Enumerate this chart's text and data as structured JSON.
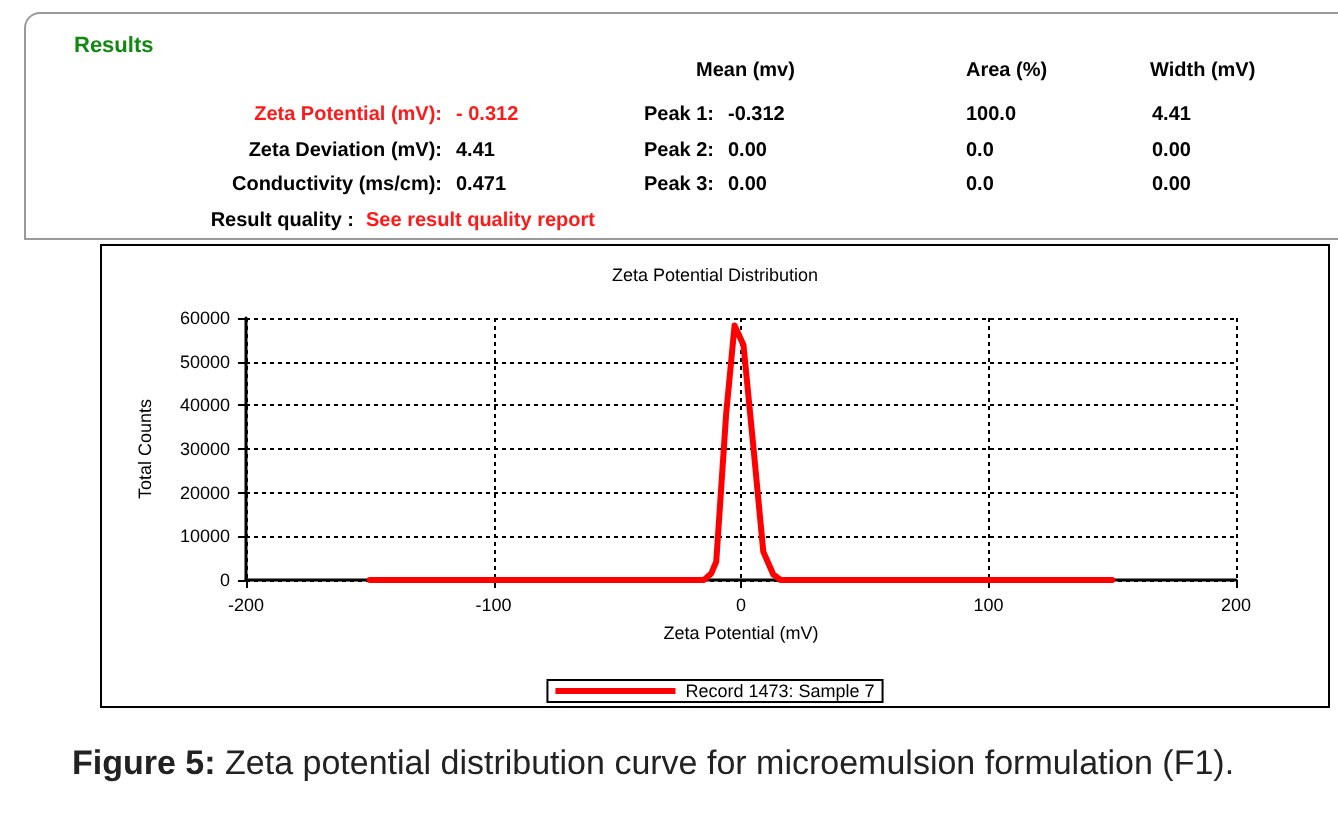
{
  "chart_data": [
    {
      "type": "other",
      "title": "Results",
      "annotations": [
        "Zeta Potential (mV):",
        "- 0.312",
        "Zeta Deviation (mV):",
        "4.41",
        "Conductivity (ms/cm):",
        "0.471",
        "Result quality :",
        "See result quality report",
        "Mean (mv)",
        "Area (%)",
        "Width (mV)",
        "Peak 1:",
        "-0.312",
        "100.0",
        "4.41",
        "Peak 2:",
        "0.00",
        "0.0",
        "0.00",
        "Peak 3:",
        "0.00",
        "0.0",
        "0.00"
      ]
    },
    {
      "type": "line",
      "title": "Zeta Potential Distribution",
      "xlabel": "Zeta Potential (mV)",
      "ylabel": "Total Counts",
      "xlim": [
        -200,
        200
      ],
      "xticks": [
        -200,
        -100,
        0,
        100,
        200
      ],
      "ylim": [
        0,
        60000
      ],
      "yticks": [
        0,
        10000,
        20000,
        30000,
        40000,
        50000,
        60000
      ],
      "grid": true,
      "legend": "bottom",
      "marker": "none",
      "line_style": "solid",
      "series": [
        {
          "name": "Record 1473: Sample 7",
          "color": "#ff0000",
          "x": [
            -150,
            -15,
            -12,
            -10,
            -6,
            -2.6,
            1,
            5,
            9,
            13,
            16,
            150
          ],
          "values": [
            0,
            0,
            1500,
            4200,
            38000,
            58300,
            53800,
            30500,
            6500,
            1300,
            0,
            0
          ]
        }
      ],
      "annotations": [
        "Figure 5: Zeta potential distribution curve for microemulsion formulation (F1)."
      ]
    }
  ]
}
